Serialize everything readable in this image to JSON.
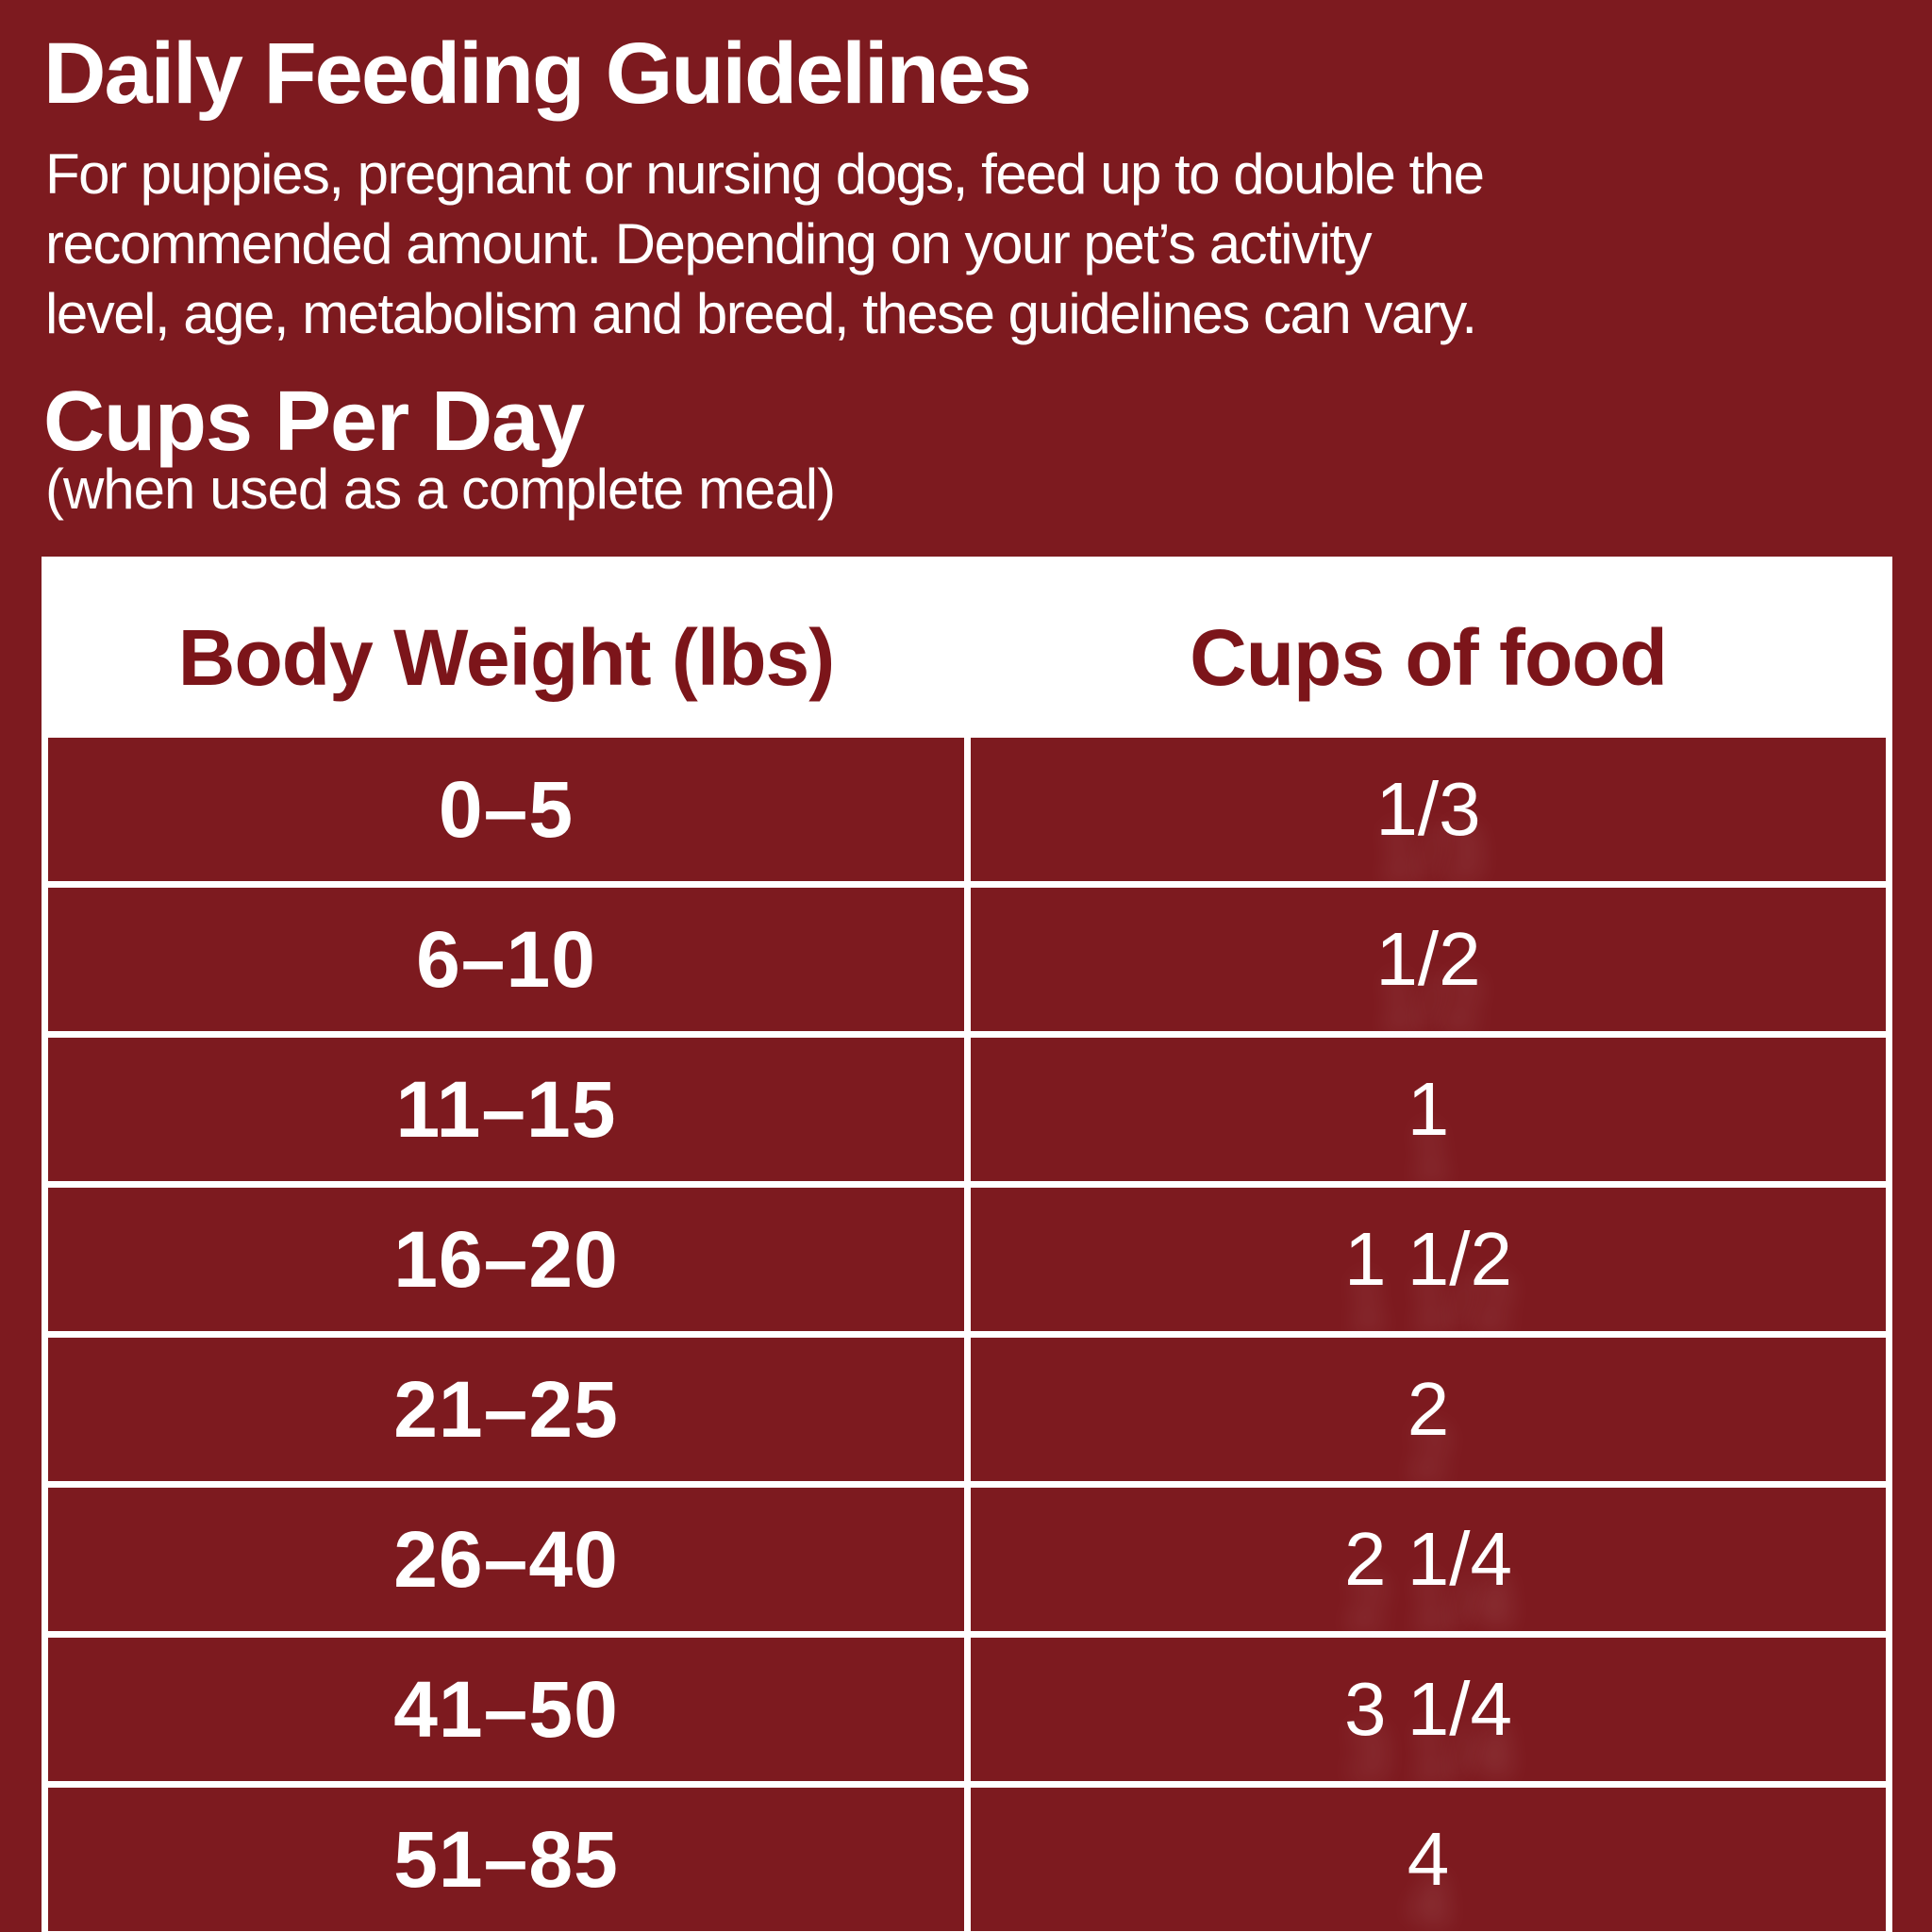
{
  "colors": {
    "background": "#7D1A1F",
    "table_border": "#FFFFFF",
    "header_text": "#7C151A",
    "body_text": "#FFFFFF"
  },
  "header": {
    "title": "Daily Feeding Guidelines",
    "description": "For puppies, pregnant or nursing dogs, feed up to double the\nrecommended amount. Depending on your pet’s activity\nlevel, age, metabolism and breed, these guidelines can vary.",
    "subtitle": "Cups Per Day",
    "subtitle_note": "(when used as a complete meal)"
  },
  "table": {
    "columns": [
      {
        "key": "weight",
        "label": "Body Weight (lbs)"
      },
      {
        "key": "cups",
        "label": "Cups of food"
      }
    ],
    "rows": [
      {
        "weight": "0–5",
        "cups": "1/3"
      },
      {
        "weight": "6–10",
        "cups": "1/2"
      },
      {
        "weight": "11–15",
        "cups": "1"
      },
      {
        "weight": "16–20",
        "cups": "1 1/2"
      },
      {
        "weight": "21–25",
        "cups": "2"
      },
      {
        "weight": "26–40",
        "cups": "2 1/4"
      },
      {
        "weight": "41–50",
        "cups": "3 1/4"
      },
      {
        "weight": "51–85",
        "cups": "4"
      }
    ]
  }
}
